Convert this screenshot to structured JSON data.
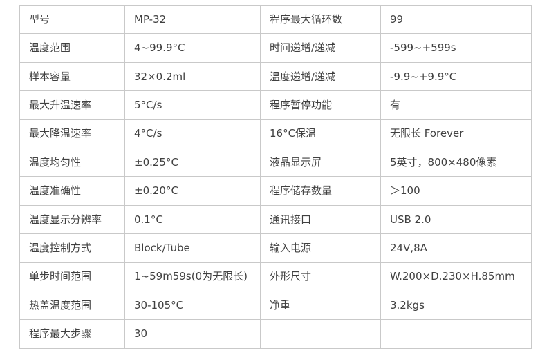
{
  "title": "MP-32 specification table",
  "colors": {
    "border": "#c9c9c9",
    "text": "#404040",
    "background": "#ffffff"
  },
  "table": {
    "rows": [
      {
        "c0": "型号",
        "c1": "MP-32",
        "c2": "程序最大循环数",
        "c3": "99"
      },
      {
        "c0": "温度范围",
        "c1": "4~99.9°C",
        "c2": "时间递增/递减",
        "c3": "-599~+599s"
      },
      {
        "c0": "样本容量",
        "c1": "32×0.2ml",
        "c2": "温度递增/递减",
        "c3": "-9.9~+9.9°C"
      },
      {
        "c0": "最大升温速率",
        "c1": "5°C/s",
        "c2": "程序暂停功能",
        "c3": "有"
      },
      {
        "c0": "最大降温速率",
        "c1": "4°C/s",
        "c2": "16°C保温",
        "c3": "无限长 Forever"
      },
      {
        "c0": "温度均匀性",
        "c1": "±0.25°C",
        "c2": "液晶显示屏",
        "c3": "5英寸，800×480像素"
      },
      {
        "c0": "温度准确性",
        "c1": "±0.20°C",
        "c2": "程序储存数量",
        "c3": "＞100"
      },
      {
        "c0": "温度显示分辨率",
        "c1": "0.1°C",
        "c2": "通讯接口",
        "c3": "USB 2.0"
      },
      {
        "c0": "温度控制方式",
        "c1": "Block/Tube",
        "c2": "输入电源",
        "c3": "24V,8A"
      },
      {
        "c0": "单步时间范围",
        "c1": "1~59m59s(0为无限长)",
        "c2": "外形尺寸",
        "c3": "W.200×D.230×H.85mm"
      },
      {
        "c0": "热盖温度范围",
        "c1": "30-105°C",
        "c2": "净重",
        "c3": "3.2kgs"
      },
      {
        "c0": "程序最大步骤",
        "c1": "30",
        "c2": "",
        "c3": ""
      }
    ]
  }
}
